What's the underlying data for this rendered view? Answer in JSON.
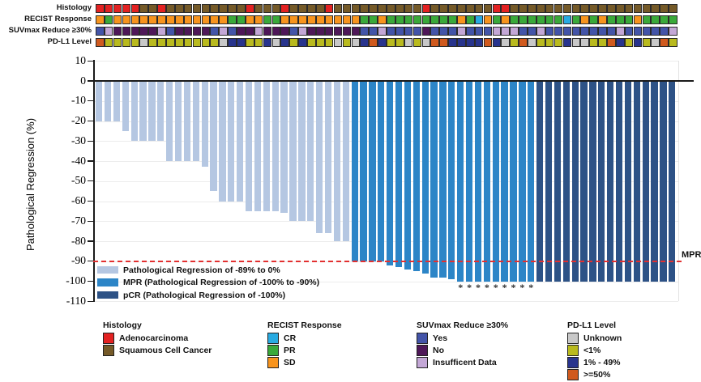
{
  "tracks": {
    "rows": [
      {
        "id": "histology",
        "label": "Histology",
        "codes": [
          "A",
          "A",
          "A",
          "A",
          "A",
          "S",
          "S",
          "A",
          "S",
          "S",
          "S",
          "S",
          "S",
          "S",
          "S",
          "S",
          "S",
          "A",
          "S",
          "S",
          "S",
          "A",
          "S",
          "S",
          "S",
          "S",
          "A",
          "S",
          "S",
          "S",
          "S",
          "S",
          "S",
          "S",
          "S",
          "S",
          "S",
          "A",
          "S",
          "S",
          "S",
          "S",
          "S",
          "S",
          "S",
          "A",
          "A",
          "S",
          "S",
          "S",
          "S",
          "S",
          "S",
          "S",
          "S",
          "S",
          "S",
          "S",
          "S",
          "S",
          "S",
          "S",
          "S",
          "S",
          "S",
          "S"
        ]
      },
      {
        "id": "recist",
        "label": "RECIST Response",
        "codes": [
          "SD",
          "PR",
          "SD",
          "SD",
          "SD",
          "SD",
          "SD",
          "SD",
          "SD",
          "SD",
          "SD",
          "SD",
          "SD",
          "SD",
          "SD",
          "PR",
          "PR",
          "SD",
          "SD",
          "PR",
          "PR",
          "SD",
          "SD",
          "SD",
          "SD",
          "SD",
          "SD",
          "SD",
          "SD",
          "SD",
          "PR",
          "PR",
          "SD",
          "PR",
          "PR",
          "PR",
          "PR",
          "PR",
          "PR",
          "PR",
          "PR",
          "SD",
          "PR",
          "CR",
          "SD",
          "PR",
          "SD",
          "PR",
          "PR",
          "PR",
          "PR",
          "PR",
          "PR",
          "CR",
          "PR",
          "SD",
          "PR",
          "SD",
          "PR",
          "PR",
          "PR",
          "SD",
          "PR",
          "PR",
          "PR",
          "PR"
        ]
      },
      {
        "id": "suvmax",
        "label": "SUVmax Reduce ≥30%",
        "codes": [
          "Y",
          "I",
          "N",
          "N",
          "N",
          "N",
          "N",
          "I",
          "Y",
          "N",
          "N",
          "N",
          "N",
          "Y",
          "I",
          "Y",
          "N",
          "N",
          "I",
          "N",
          "N",
          "N",
          "Y",
          "I",
          "N",
          "N",
          "N",
          "N",
          "N",
          "N",
          "Y",
          "Y",
          "I",
          "Y",
          "Y",
          "Y",
          "Y",
          "N",
          "Y",
          "Y",
          "Y",
          "I",
          "Y",
          "Y",
          "Y",
          "I",
          "I",
          "I",
          "Y",
          "Y",
          "I",
          "Y",
          "Y",
          "Y",
          "Y",
          "Y",
          "Y",
          "Y",
          "Y",
          "I",
          "Y",
          "Y",
          "Y",
          "Y",
          "Y",
          "I"
        ]
      },
      {
        "id": "pdl1",
        "label": "PD-L1 Level",
        "codes": [
          "H",
          "L",
          "L",
          "L",
          "L",
          "U",
          "L",
          "L",
          "L",
          "L",
          "L",
          "L",
          "L",
          "L",
          "U",
          "M",
          "M",
          "L",
          "L",
          "M",
          "U",
          "M",
          "L",
          "M",
          "L",
          "L",
          "L",
          "U",
          "L",
          "U",
          "M",
          "H",
          "M",
          "L",
          "L",
          "U",
          "L",
          "U",
          "H",
          "H",
          "M",
          "M",
          "M",
          "M",
          "H",
          "M",
          "U",
          "L",
          "H",
          "U",
          "L",
          "L",
          "L",
          "M",
          "U",
          "U",
          "L",
          "L",
          "H",
          "M",
          "L",
          "M",
          "L",
          "U",
          "H",
          "L"
        ]
      }
    ],
    "palette": {
      "histology": {
        "A": "#E32222",
        "S": "#755A28"
      },
      "recist": {
        "CR": "#29ABE2",
        "PR": "#3AA93A",
        "SD": "#F7941E"
      },
      "suvmax": {
        "Y": "#4354A8",
        "N": "#4E1758",
        "I": "#C3A7D6"
      },
      "pdl1": {
        "U": "#C8C8C8",
        "L": "#B9BA1E",
        "M": "#28348D",
        "H": "#D05A1E"
      }
    }
  },
  "chart_data": {
    "type": "bar",
    "title": "",
    "xlabel": "",
    "ylabel": "Pathological Regression (%)",
    "ylim": [
      -110,
      10
    ],
    "yticks": [
      10,
      0,
      -10,
      -20,
      -30,
      -40,
      -50,
      -60,
      -70,
      -80,
      -90,
      -100,
      -110
    ],
    "grid": true,
    "values": [
      -20,
      -20,
      -20,
      -25,
      -30,
      -30,
      -30,
      -30,
      -40,
      -40,
      -40,
      -40,
      -43,
      -55,
      -60,
      -60,
      -60,
      -65,
      -65,
      -65,
      -65,
      -66,
      -70,
      -70,
      -70,
      -76,
      -76,
      -80,
      -80,
      -90,
      -90,
      -90,
      -90,
      -92,
      -93,
      -94,
      -95,
      -96,
      -98,
      -98,
      -99,
      -100,
      -100,
      -100,
      -100,
      -100,
      -100,
      -100,
      -100,
      -100,
      -100,
      -100,
      -100,
      -100,
      -100,
      -100,
      -100,
      -100,
      -100,
      -100,
      -100,
      -100,
      -100,
      -100,
      -100,
      -100
    ],
    "classes": [
      "reg",
      "reg",
      "reg",
      "reg",
      "reg",
      "reg",
      "reg",
      "reg",
      "reg",
      "reg",
      "reg",
      "reg",
      "reg",
      "reg",
      "reg",
      "reg",
      "reg",
      "reg",
      "reg",
      "reg",
      "reg",
      "reg",
      "reg",
      "reg",
      "reg",
      "reg",
      "reg",
      "reg",
      "reg",
      "mpr",
      "mpr",
      "mpr",
      "mpr",
      "mpr",
      "mpr",
      "mpr",
      "mpr",
      "mpr",
      "mpr",
      "mpr",
      "mpr",
      "mpr",
      "mpr",
      "mpr",
      "mpr",
      "mpr",
      "mpr",
      "mpr",
      "mpr",
      "mpr",
      "pcr",
      "pcr",
      "pcr",
      "pcr",
      "pcr",
      "pcr",
      "pcr",
      "pcr",
      "pcr",
      "pcr",
      "pcr",
      "pcr",
      "pcr",
      "pcr",
      "pcr",
      "pcr"
    ],
    "asterisk_indices": [
      41,
      42,
      43,
      44,
      45,
      46,
      47,
      48,
      49
    ],
    "asterisk_symbol": "*",
    "colors": {
      "reg": "#B5C7E2",
      "mpr": "#2C85C7",
      "pcr": "#2D5286"
    },
    "mpr_line": {
      "y": -90,
      "label": "MPR",
      "color": "#E23030"
    },
    "legend": [
      {
        "class": "reg",
        "label": "Pathological Regression of -89% to 0%"
      },
      {
        "class": "mpr",
        "label": "MPR (Pathological Regression of -100% to -90%)"
      },
      {
        "class": "pcr",
        "label": "pCR (Pathological Regression of -100%)"
      }
    ],
    "legend_position": "lower left"
  },
  "bottom_legend": [
    {
      "title": "Histology",
      "items": [
        {
          "label": "Adenocarcinoma",
          "color": "#E32222"
        },
        {
          "label": "Squamous Cell Cancer",
          "color": "#755A28"
        }
      ]
    },
    {
      "title": "RECIST Response",
      "items": [
        {
          "label": "CR",
          "color": "#29ABE2"
        },
        {
          "label": "PR",
          "color": "#3AA93A"
        },
        {
          "label": "SD",
          "color": "#F7941E"
        }
      ]
    },
    {
      "title": "SUVmax Reduce ≥30%",
      "items": [
        {
          "label": "Yes",
          "color": "#4354A8"
        },
        {
          "label": "No",
          "color": "#4E1758"
        },
        {
          "label": "Insufficent Data",
          "color": "#C3A7D6"
        }
      ]
    },
    {
      "title": "PD-L1 Level",
      "items": [
        {
          "label": "Unknown",
          "color": "#C8C8C8"
        },
        {
          "label": "<1%",
          "color": "#B9BA1E"
        },
        {
          "label": "1% - 49%",
          "color": "#28348D"
        },
        {
          "label": ">=50%",
          "color": "#D05A1E"
        }
      ]
    }
  ]
}
